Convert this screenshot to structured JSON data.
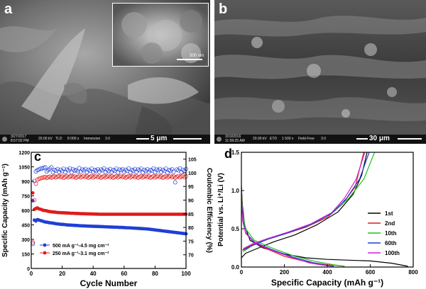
{
  "panel_a": {
    "label": "a",
    "inset_scale": "500 nm",
    "scale_bar": "5 μm",
    "meta": {
      "date": "3/27/2017",
      "time": "8:57:02 PM",
      "hv": "20.00 kV",
      "det": "TLD",
      "mag": "8 000 x",
      "mode": "Immersion",
      "spot": "3.0"
    }
  },
  "panel_b": {
    "label": "b",
    "scale_bar": "30 μm",
    "meta": {
      "date": "3/19/2016",
      "time": "11:59:25 AM",
      "hv": "20.00 kV",
      "det": "ETD",
      "mag": "1 500 x",
      "mode": "Field-Free",
      "spot": "3.0"
    }
  },
  "chart_data": [
    {
      "panel": "c",
      "type": "scatter",
      "xlabel": "Cycle Number",
      "ylabel": "Specific Capacity (mAh g⁻¹)",
      "y2label": "Coulombic Efficiency (%)",
      "xlim": [
        0,
        100
      ],
      "ylim": [
        0,
        1200
      ],
      "y2lim": [
        65,
        107.5
      ],
      "xticks": [
        0,
        20,
        40,
        60,
        80,
        100
      ],
      "yticks": [
        0,
        150,
        300,
        450,
        600,
        750,
        900,
        1050,
        1200
      ],
      "y2ticks": [
        70,
        75,
        80,
        85,
        90,
        95,
        100,
        105
      ],
      "legend": [
        "500 mA g⁻¹-4.5 mg cm⁻²",
        "250 mA g⁻¹-3.1 mg cm⁻²"
      ],
      "series": [
        {
          "name": "500 mA g⁻¹-4.5 mg cm⁻²",
          "color": "#1f3fd6",
          "axis": "left",
          "start": 1,
          "values": [
            700,
            500,
            490,
            505,
            500,
            495,
            490,
            485,
            480,
            478,
            475,
            472,
            470,
            468,
            465,
            462,
            460,
            458,
            456,
            455,
            454,
            452,
            450,
            449,
            448,
            447,
            446,
            445,
            444,
            443,
            442,
            441,
            440,
            440,
            439,
            438,
            437,
            437,
            436,
            435,
            435,
            434,
            434,
            433,
            432,
            432,
            431,
            430,
            430,
            429,
            428,
            428,
            427,
            426,
            426,
            425,
            424,
            424,
            423,
            422,
            421,
            420,
            420,
            419,
            418,
            417,
            416,
            415,
            414,
            413,
            412,
            411,
            410,
            409,
            408,
            406,
            404,
            402,
            400,
            398,
            396,
            394,
            392,
            390,
            388,
            386,
            384,
            382,
            380,
            378,
            376,
            374,
            372,
            370,
            368,
            366,
            364,
            362,
            360,
            358
          ]
        },
        {
          "name": "250 mA g⁻¹-3.1 mg cm⁻²",
          "color": "#e01b1b",
          "axis": "left",
          "start": 1,
          "values": [
            780,
            610,
            620,
            625,
            615,
            612,
            605,
            600,
            598,
            595,
            590,
            588,
            585,
            583,
            582,
            580,
            578,
            577,
            576,
            575,
            575,
            574,
            573,
            572,
            571,
            570,
            570,
            569,
            568,
            568,
            567,
            566,
            566,
            565,
            565,
            564,
            564,
            563,
            563,
            562,
            562,
            561,
            561,
            560,
            560,
            560,
            560,
            560,
            560,
            560,
            560,
            560,
            560,
            560,
            560,
            560,
            560,
            560,
            560,
            560,
            560,
            560,
            560,
            560,
            560,
            560,
            560,
            560,
            560,
            560,
            560,
            560,
            560,
            560,
            560,
            560,
            560,
            560,
            560,
            560,
            560,
            560,
            560,
            560,
            560,
            560,
            560,
            560,
            560,
            560,
            560,
            560,
            560,
            560,
            560,
            560,
            560,
            560,
            560,
            560
          ]
        },
        {
          "name": "CE 500",
          "color": "#1f3fd6",
          "axis": "right",
          "hollow": true,
          "start": 1,
          "values": [
            74,
            97,
            100.5,
            101,
            101.2,
            101.5,
            101.6,
            101.8,
            102,
            100.5,
            101,
            101.5,
            102,
            100.2,
            101,
            100.8,
            101.4,
            100.3,
            101.1,
            100.6,
            101.5,
            100.2,
            101.2,
            100.9,
            101.6,
            100.1,
            101.3,
            100.8,
            101,
            100.5,
            101.7,
            100.4,
            101.2,
            100.9,
            101.4,
            100.2,
            101.1,
            100.7,
            101.5,
            100.3,
            101,
            100.8,
            101.3,
            100.4,
            101.2,
            100.9,
            101.6,
            100.2,
            101.1,
            100.7,
            101.4,
            100.3,
            101,
            100.8,
            101.5,
            100.1,
            101.2,
            100.9,
            101.3,
            100.4,
            101.1,
            100.7,
            101.6,
            100.2,
            101,
            100.8,
            101.4,
            100.3,
            101.2,
            100.9,
            101.5,
            100.1,
            101.1,
            100.7,
            101.3,
            100.4,
            101,
            100.8,
            101.6,
            100.2,
            101.2,
            100.9,
            101.4,
            100.3,
            101.1,
            100.7,
            101.5,
            100.1,
            101,
            100.8,
            101.3,
            100.4,
            96.5,
            101.2,
            100.9,
            101.6,
            100.2,
            101.1,
            100.7,
            101.4
          ]
        },
        {
          "name": "CE 250",
          "color": "#e01b1b",
          "axis": "right",
          "hollow": true,
          "start": 1,
          "values": [
            74.5,
            90,
            96,
            97.5,
            97.8,
            98,
            98.2,
            98.3,
            98.5,
            98.1,
            98.4,
            98.6,
            98.2,
            98.5,
            98.7,
            98.3,
            98.6,
            98.8,
            98.4,
            98.7,
            98.2,
            98.5,
            98.8,
            98.3,
            98.6,
            98.9,
            98.4,
            98.7,
            98.2,
            98.5,
            98.8,
            98.3,
            98.6,
            98.9,
            98.4,
            98.7,
            98.2,
            98.5,
            98.8,
            98.3,
            98.6,
            98.9,
            98.4,
            98.7,
            98.2,
            98.5,
            98.8,
            98.3,
            98.6,
            98.9,
            98.4,
            98.7,
            98.2,
            98.5,
            98.8,
            98.3,
            98.6,
            98.9,
            98.4,
            98.7,
            98.2,
            98.5,
            98.8,
            98.3,
            98.6,
            98.9,
            98.4,
            98.7,
            98.2,
            98.5,
            98.8,
            98.3,
            98.6,
            98.9,
            98.4,
            98.7,
            98.2,
            98.5,
            98.8,
            98.3,
            98.6,
            98.9,
            98.4,
            98.7,
            98.2,
            98.5,
            98.8,
            98.3,
            98.6,
            98.9,
            98.4,
            98.7,
            98.2,
            98.5,
            98.8,
            98.3,
            98.6,
            98.9,
            98.4,
            98.7
          ]
        }
      ]
    },
    {
      "panel": "d",
      "type": "line",
      "xlabel": "Specific Capacity (mAh g⁻¹)",
      "ylabel": "Potential vs. Li⁺/Li (V)",
      "xlim": [
        0,
        800
      ],
      "ylim": [
        0,
        1.5
      ],
      "xticks": [
        0,
        200,
        400,
        600,
        800
      ],
      "yticks": [
        0,
        0.5,
        1.0,
        1.5
      ],
      "series": [
        {
          "name": "1st",
          "color": "#000000",
          "discharge": [
            [
              0,
              1.05
            ],
            [
              5,
              0.8
            ],
            [
              15,
              0.55
            ],
            [
              40,
              0.35
            ],
            [
              100,
              0.25
            ],
            [
              200,
              0.17
            ],
            [
              300,
              0.12
            ],
            [
              400,
              0.1
            ],
            [
              500,
              0.09
            ],
            [
              600,
              0.08
            ],
            [
              700,
              0.05
            ],
            [
              775,
              0.01
            ]
          ],
          "charge": [
            [
              0,
              0.12
            ],
            [
              20,
              0.18
            ],
            [
              80,
              0.25
            ],
            [
              150,
              0.33
            ],
            [
              250,
              0.42
            ],
            [
              350,
              0.55
            ],
            [
              450,
              0.72
            ],
            [
              520,
              0.95
            ],
            [
              560,
              1.2
            ],
            [
              585,
              1.5
            ]
          ]
        },
        {
          "name": "2nd",
          "color": "#e01b1b",
          "discharge": [
            [
              0,
              1.05
            ],
            [
              8,
              0.6
            ],
            [
              20,
              0.45
            ],
            [
              50,
              0.35
            ],
            [
              100,
              0.26
            ],
            [
              200,
              0.14
            ],
            [
              300,
              0.07
            ],
            [
              400,
              0.03
            ],
            [
              450,
              0.02
            ],
            [
              480,
              0.01
            ]
          ],
          "charge": [
            [
              5,
              0.22
            ],
            [
              40,
              0.28
            ],
            [
              100,
              0.35
            ],
            [
              200,
              0.43
            ],
            [
              300,
              0.52
            ],
            [
              400,
              0.65
            ],
            [
              470,
              0.82
            ],
            [
              530,
              1.05
            ],
            [
              570,
              1.5
            ]
          ]
        },
        {
          "name": "10th",
          "color": "#20c020",
          "discharge": [
            [
              0,
              1.0
            ],
            [
              6,
              0.7
            ],
            [
              20,
              0.5
            ],
            [
              60,
              0.35
            ],
            [
              150,
              0.24
            ],
            [
              250,
              0.14
            ],
            [
              350,
              0.07
            ],
            [
              430,
              0.03
            ],
            [
              480,
              0.01
            ]
          ],
          "charge": [
            [
              8,
              0.2
            ],
            [
              50,
              0.28
            ],
            [
              120,
              0.36
            ],
            [
              220,
              0.45
            ],
            [
              320,
              0.55
            ],
            [
              420,
              0.7
            ],
            [
              500,
              0.9
            ],
            [
              570,
              1.15
            ],
            [
              620,
              1.5
            ]
          ]
        },
        {
          "name": "60th",
          "color": "#1f3fd6",
          "discharge": [
            [
              0,
              0.95
            ],
            [
              6,
              0.62
            ],
            [
              20,
              0.45
            ],
            [
              60,
              0.33
            ],
            [
              140,
              0.23
            ],
            [
              240,
              0.13
            ],
            [
              330,
              0.06
            ],
            [
              400,
              0.02
            ],
            [
              430,
              0.01
            ]
          ],
          "charge": [
            [
              8,
              0.22
            ],
            [
              50,
              0.28
            ],
            [
              120,
              0.36
            ],
            [
              220,
              0.45
            ],
            [
              320,
              0.55
            ],
            [
              420,
              0.7
            ],
            [
              490,
              0.9
            ],
            [
              550,
              1.15
            ],
            [
              595,
              1.5
            ]
          ]
        },
        {
          "name": "100th",
          "color": "#d020d0",
          "discharge": [
            [
              0,
              0.9
            ],
            [
              6,
              0.6
            ],
            [
              20,
              0.44
            ],
            [
              60,
              0.32
            ],
            [
              140,
              0.22
            ],
            [
              240,
              0.12
            ],
            [
              320,
              0.05
            ],
            [
              390,
              0.02
            ],
            [
              420,
              0.01
            ]
          ],
          "charge": [
            [
              8,
              0.24
            ],
            [
              50,
              0.3
            ],
            [
              120,
              0.37
            ],
            [
              220,
              0.46
            ],
            [
              320,
              0.56
            ],
            [
              420,
              0.71
            ],
            [
              480,
              0.9
            ],
            [
              535,
              1.15
            ],
            [
              575,
              1.5
            ]
          ]
        }
      ]
    }
  ]
}
